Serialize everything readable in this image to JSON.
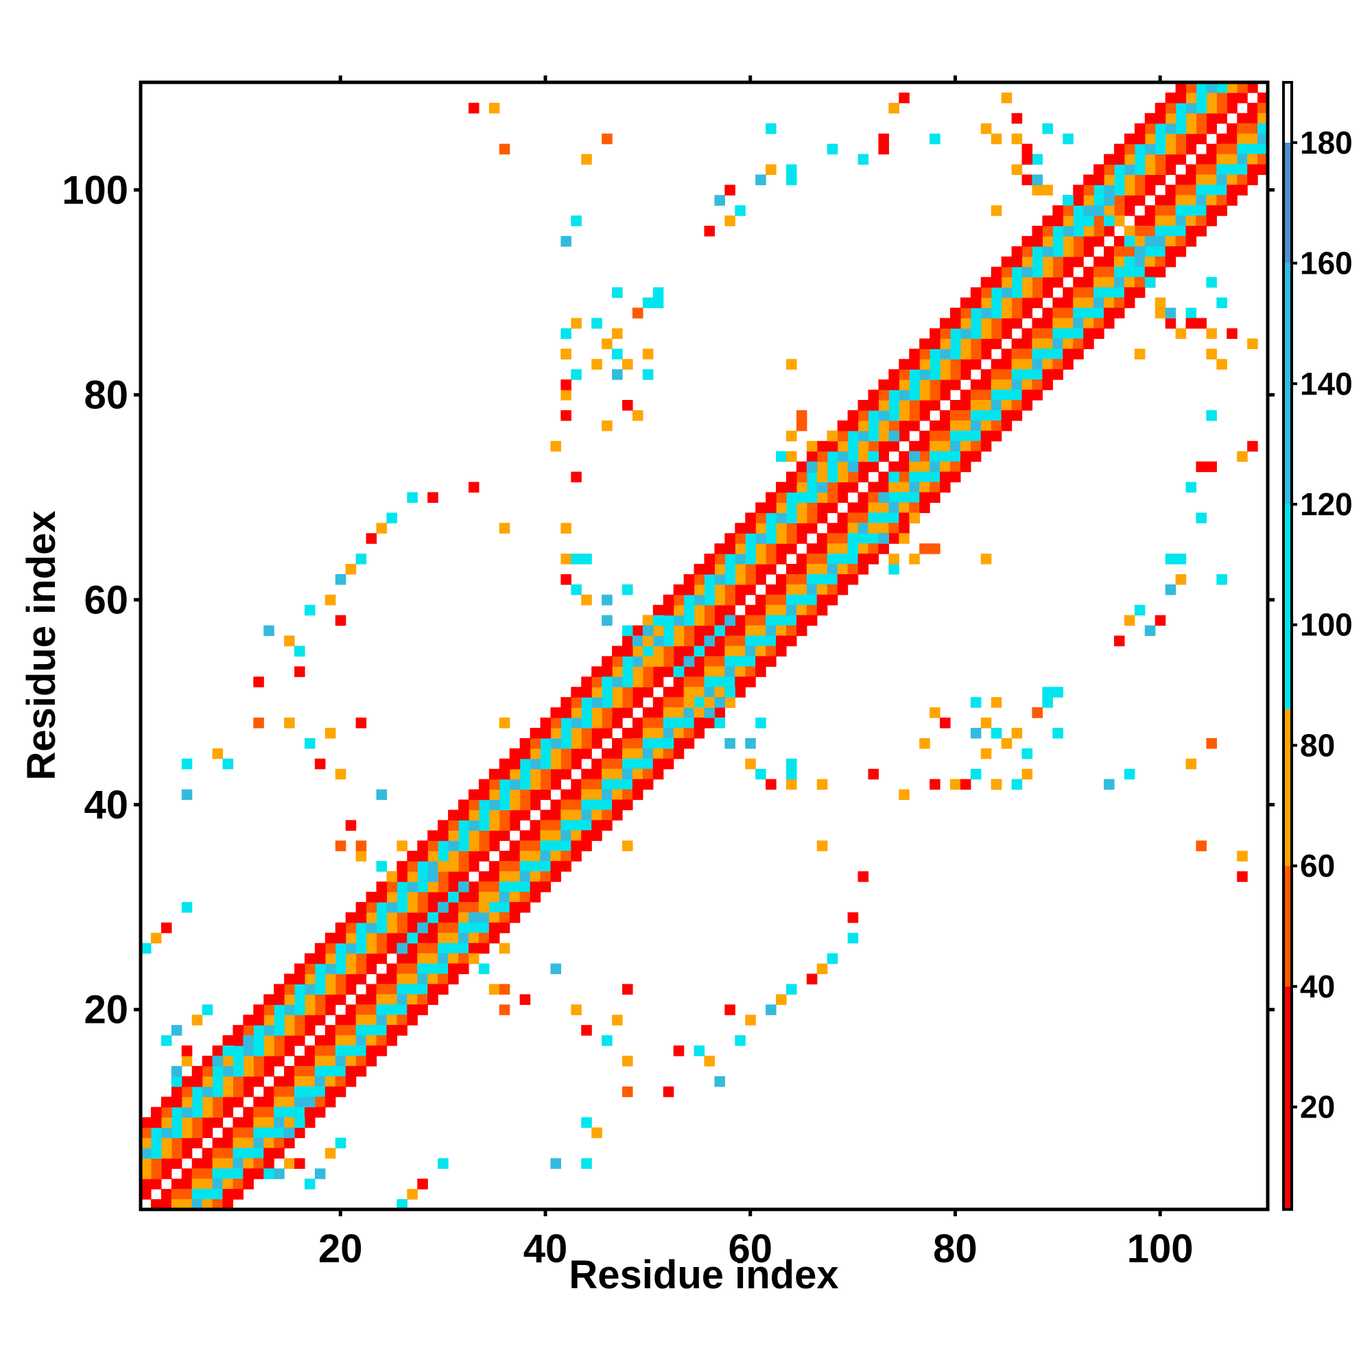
{
  "chart_data": {
    "type": "heatmap",
    "title": "",
    "xlabel": "Residue index",
    "ylabel": "Residue index",
    "xlim": [
      1,
      110
    ],
    "ylim": [
      1,
      110
    ],
    "x_ticks": [
      20,
      40,
      60,
      80,
      100
    ],
    "y_ticks": [
      20,
      40,
      60,
      80,
      100
    ],
    "grid": false,
    "symmetric": true,
    "colorbar": {
      "range": [
        3,
        190
      ],
      "ticks": [
        20,
        40,
        60,
        80,
        100,
        120,
        140,
        160,
        180
      ],
      "bands": [
        {
          "from": 3,
          "to": 40,
          "color": "#ff0000"
        },
        {
          "from": 40,
          "to": 60,
          "color": "#ff5a00"
        },
        {
          "from": 60,
          "to": 86,
          "color": "#ffa500"
        },
        {
          "from": 86,
          "to": 120,
          "color": "#00e5ee"
        },
        {
          "from": 120,
          "to": 160,
          "color": "#33bbdd"
        },
        {
          "from": 160,
          "to": 180,
          "color": "#4f8fcf"
        },
        {
          "from": 180,
          "to": 190,
          "color": "#ffffff"
        }
      ]
    },
    "band_diagonals": [
      {
        "offset": 1,
        "value": 30
      },
      {
        "offset": 2,
        "value": 50
      },
      {
        "offset": 3,
        "value": 72
      },
      {
        "offset": 4,
        "value": 100
      },
      {
        "offset": 5,
        "value": 125
      },
      {
        "offset": 6,
        "value": 95
      },
      {
        "offset": 7,
        "value": 55
      },
      {
        "offset": 8,
        "value": 25
      }
    ],
    "contacts": [
      [
        13,
        4,
        100
      ],
      [
        14,
        4,
        130
      ],
      [
        15,
        5,
        65
      ],
      [
        16,
        5,
        30
      ],
      [
        17,
        3,
        100
      ],
      [
        18,
        4,
        125
      ],
      [
        19,
        6,
        72
      ],
      [
        20,
        7,
        100
      ],
      [
        15,
        8,
        130
      ],
      [
        16,
        9,
        100
      ],
      [
        12,
        16,
        100
      ],
      [
        11,
        17,
        125
      ],
      [
        26,
        1,
        100
      ],
      [
        27,
        2,
        65
      ],
      [
        28,
        3,
        30
      ],
      [
        30,
        5,
        110
      ],
      [
        22,
        35,
        72
      ],
      [
        20,
        36,
        50
      ],
      [
        21,
        38,
        30
      ],
      [
        24,
        41,
        125
      ],
      [
        20,
        43,
        72
      ],
      [
        18,
        44,
        30
      ],
      [
        17,
        46,
        100
      ],
      [
        19,
        47,
        65
      ],
      [
        22,
        48,
        35
      ],
      [
        26,
        26,
        125
      ],
      [
        27,
        27,
        100
      ],
      [
        28,
        28,
        130
      ],
      [
        29,
        29,
        110
      ],
      [
        30,
        30,
        125
      ],
      [
        31,
        31,
        100
      ],
      [
        32,
        32,
        130
      ],
      [
        33,
        25,
        72
      ],
      [
        34,
        24,
        100
      ],
      [
        33,
        29,
        125
      ],
      [
        34,
        30,
        72
      ],
      [
        36,
        26,
        72
      ],
      [
        36,
        22,
        50
      ],
      [
        37,
        44,
        30
      ],
      [
        36,
        48,
        65
      ],
      [
        44,
        5,
        100
      ],
      [
        41,
        5,
        130
      ],
      [
        45,
        8,
        72
      ],
      [
        44,
        9,
        110
      ],
      [
        53,
        16,
        30
      ],
      [
        55,
        16,
        100
      ],
      [
        56,
        15,
        72
      ],
      [
        57,
        13,
        125
      ],
      [
        52,
        12,
        30
      ],
      [
        48,
        12,
        50
      ],
      [
        48,
        15,
        65
      ],
      [
        59,
        17,
        100
      ],
      [
        60,
        19,
        72
      ],
      [
        58,
        20,
        30
      ],
      [
        62,
        20,
        125
      ],
      [
        63,
        21,
        65
      ],
      [
        64,
        22,
        100
      ],
      [
        66,
        23,
        30
      ],
      [
        67,
        24,
        72
      ],
      [
        68,
        25,
        100
      ],
      [
        70,
        27,
        110
      ],
      [
        70,
        29,
        30
      ],
      [
        71,
        33,
        30
      ],
      [
        67,
        36,
        65
      ],
      [
        64,
        42,
        72
      ],
      [
        67,
        42,
        65
      ],
      [
        64,
        44,
        100
      ],
      [
        60,
        46,
        125
      ],
      [
        61,
        48,
        100
      ],
      [
        58,
        50,
        72
      ],
      [
        54,
        50,
        65
      ],
      [
        53,
        53,
        100
      ],
      [
        54,
        54,
        125
      ],
      [
        55,
        55,
        100
      ],
      [
        56,
        56,
        130
      ],
      [
        57,
        57,
        100
      ],
      [
        58,
        58,
        125
      ],
      [
        49,
        56,
        125
      ],
      [
        48,
        57,
        100
      ],
      [
        46,
        58,
        130
      ],
      [
        44,
        60,
        72
      ],
      [
        43,
        61,
        100
      ],
      [
        42,
        62,
        30
      ],
      [
        43,
        64,
        100
      ],
      [
        46,
        52,
        100
      ],
      [
        47,
        48,
        30
      ],
      [
        75,
        41,
        65
      ],
      [
        72,
        43,
        30
      ],
      [
        70,
        65,
        100
      ],
      [
        71,
        67,
        125
      ],
      [
        72,
        68,
        100
      ],
      [
        73,
        70,
        125
      ],
      [
        74,
        72,
        100
      ],
      [
        76,
        74,
        130
      ],
      [
        72,
        67,
        65
      ],
      [
        73,
        66,
        125
      ],
      [
        74,
        63,
        100
      ],
      [
        76,
        64,
        72
      ],
      [
        78,
        65,
        50
      ],
      [
        64,
        74,
        72
      ],
      [
        66,
        75,
        65
      ],
      [
        68,
        76,
        72
      ],
      [
        65,
        77,
        50
      ],
      [
        64,
        83,
        65
      ],
      [
        80,
        42,
        65
      ],
      [
        82,
        43,
        100
      ],
      [
        84,
        42,
        125
      ],
      [
        83,
        45,
        72
      ],
      [
        85,
        46,
        65
      ],
      [
        87,
        45,
        100
      ],
      [
        86,
        47,
        72
      ],
      [
        88,
        49,
        30
      ],
      [
        84,
        47,
        110
      ],
      [
        78,
        42,
        30
      ],
      [
        77,
        46,
        72
      ],
      [
        89,
        51,
        100
      ],
      [
        90,
        51,
        100
      ],
      [
        84,
        50,
        65
      ],
      [
        96,
        56,
        30
      ],
      [
        97,
        58,
        72
      ],
      [
        98,
        59,
        100
      ],
      [
        99,
        57,
        125
      ],
      [
        100,
        58,
        30
      ],
      [
        101,
        61,
        125
      ],
      [
        102,
        62,
        65
      ],
      [
        101,
        64,
        100
      ],
      [
        104,
        68,
        100
      ],
      [
        105,
        73,
        30
      ],
      [
        108,
        74,
        65
      ],
      [
        109,
        75,
        30
      ],
      [
        106,
        62,
        100
      ],
      [
        105,
        78,
        100
      ],
      [
        97,
        93,
        100
      ],
      [
        98,
        94,
        125
      ],
      [
        99,
        95,
        130
      ],
      [
        97,
        96,
        72
      ],
      [
        96,
        97,
        65
      ],
      [
        95,
        97,
        100
      ],
      [
        100,
        88,
        72
      ],
      [
        101,
        87,
        30
      ],
      [
        102,
        86,
        65
      ],
      [
        103,
        88,
        100
      ],
      [
        104,
        87,
        30
      ],
      [
        106,
        83,
        72
      ],
      [
        107,
        86,
        30
      ],
      [
        105,
        91,
        100
      ],
      [
        109,
        85,
        65
      ],
      [
        91,
        99,
        100
      ],
      [
        89,
        100,
        72
      ],
      [
        88,
        101,
        125
      ],
      [
        87,
        103,
        30
      ],
      [
        86,
        105,
        65
      ],
      [
        89,
        106,
        100
      ],
      [
        84,
        98,
        65
      ],
      [
        84,
        105,
        72
      ],
      [
        49,
        88,
        50
      ],
      [
        50,
        89,
        100
      ],
      [
        47,
        90,
        100
      ],
      [
        43,
        87,
        72
      ],
      [
        42,
        86,
        100
      ],
      [
        35,
        108,
        65
      ],
      [
        33,
        108,
        30
      ],
      [
        36,
        104,
        50
      ],
      [
        64,
        102,
        100
      ],
      [
        71,
        103,
        100
      ],
      [
        73,
        104,
        30
      ],
      [
        46,
        105,
        50
      ],
      [
        44,
        103,
        72
      ],
      [
        43,
        97,
        100
      ],
      [
        42,
        95,
        125
      ],
      [
        49,
        78,
        72
      ],
      [
        48,
        79,
        30
      ],
      [
        50,
        82,
        100
      ],
      [
        48,
        83,
        65
      ],
      [
        47,
        82,
        125
      ],
      [
        42,
        81,
        30
      ],
      [
        42,
        84,
        72
      ],
      [
        50,
        56,
        72
      ],
      [
        50,
        57,
        125
      ],
      [
        51,
        58,
        100
      ]
    ]
  }
}
